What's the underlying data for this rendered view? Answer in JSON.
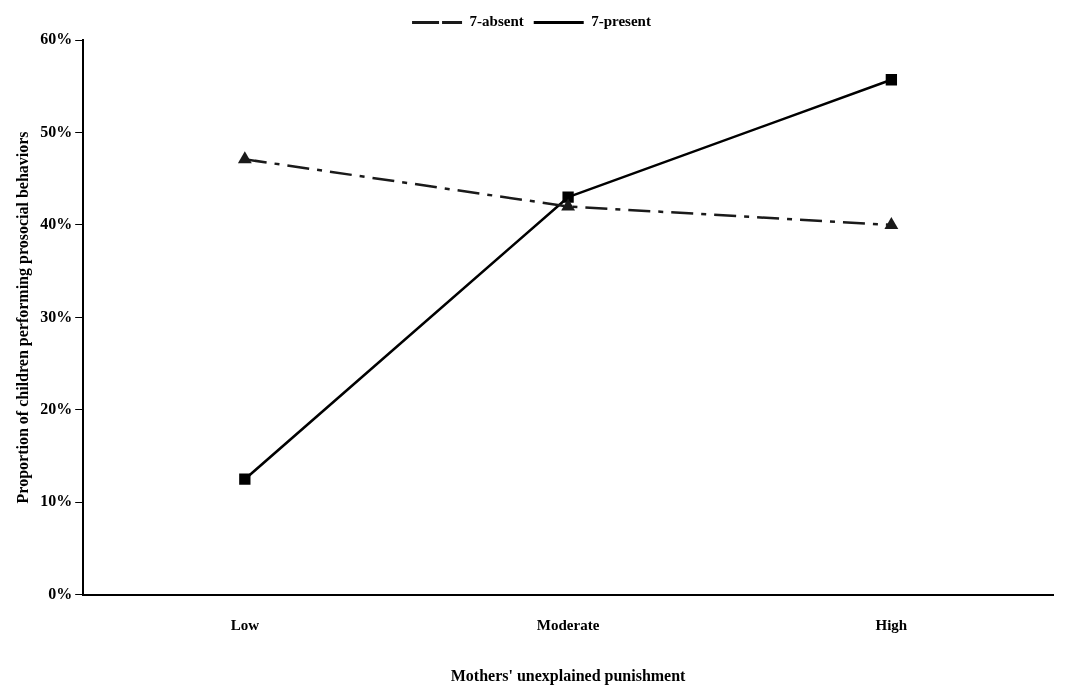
{
  "chart_data": {
    "type": "line",
    "xlabel": "Mothers' unexplained punishment",
    "ylabel": "Proportion of children performing prosocial behaviors",
    "categories": [
      "Low",
      "Moderate",
      "High"
    ],
    "series": [
      {
        "name": "7-absent",
        "color": "#1a1a1a",
        "values": [
          47.1,
          42.0,
          40.0
        ],
        "marker": "triangle",
        "line_style": "dashdot"
      },
      {
        "name": "7-present",
        "color": "#000000",
        "values": [
          12.5,
          43.0,
          55.7
        ],
        "marker": "square",
        "line_style": "solid"
      }
    ],
    "ylim": [
      0,
      60
    ],
    "yticks": [
      {
        "value": 0,
        "label": "0%"
      },
      {
        "value": 10,
        "label": "10%"
      },
      {
        "value": 20,
        "label": "20%"
      },
      {
        "value": 30,
        "label": "30%"
      },
      {
        "value": 40,
        "label": "40%"
      },
      {
        "value": 50,
        "label": "50%"
      },
      {
        "value": 60,
        "label": "60%"
      }
    ],
    "grid": false,
    "legend": "top"
  }
}
